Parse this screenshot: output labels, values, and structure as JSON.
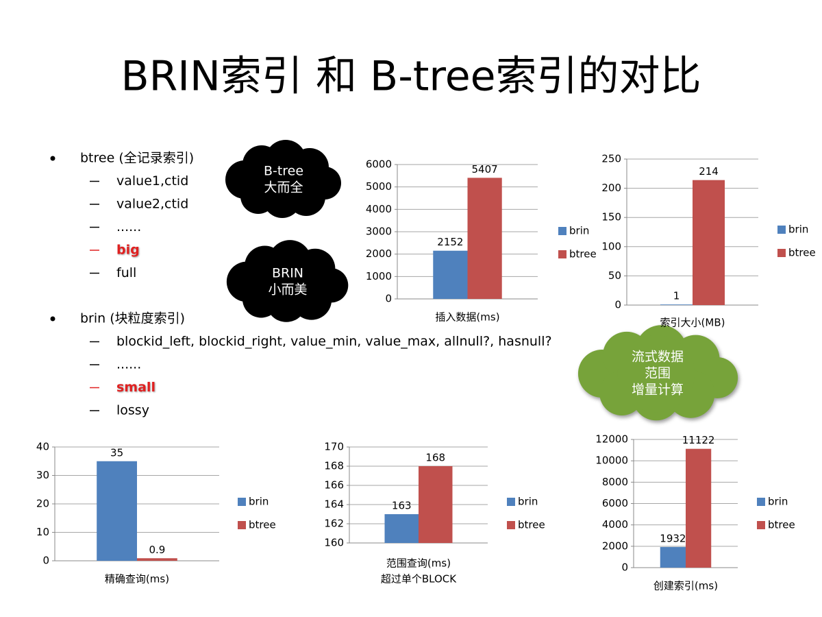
{
  "title": "BRIN索引 和 B-tree索引的对比",
  "bullets": [
    {
      "text": "btree (全记录索引)",
      "items": [
        {
          "text": "value1,ctid"
        },
        {
          "text": "value2,ctid"
        },
        {
          "text": "......"
        },
        {
          "text": "big",
          "emphasis": true
        },
        {
          "text": "full"
        }
      ]
    },
    {
      "text": "brin (块粒度索引)",
      "items": [
        {
          "text": "blockid_left, blockid_right, value_min, value_max, allnull?, hasnull?"
        },
        {
          "text": "......"
        },
        {
          "text": "small",
          "emphasis": true
        },
        {
          "text": "lossy"
        }
      ]
    }
  ],
  "callouts": [
    {
      "lines": [
        "B-tree",
        "大而全"
      ],
      "color": "#000000"
    },
    {
      "lines": [
        "BRIN",
        "小而美"
      ],
      "color": "#000000"
    },
    {
      "lines": [
        "流式数据",
        "范围",
        "增量计算"
      ],
      "color": "#77a33a"
    }
  ],
  "chart_data": [
    {
      "type": "bar",
      "categories": [
        "插入数据(ms)"
      ],
      "series": [
        {
          "name": "brin",
          "color": "#4f81bd",
          "values": [
            2152
          ]
        },
        {
          "name": "btree",
          "color": "#c0504d",
          "values": [
            5407
          ]
        }
      ],
      "ylim": [
        0,
        6000
      ],
      "yticks": [
        0,
        1000,
        2000,
        3000,
        4000,
        5000,
        6000
      ],
      "grid": true
    },
    {
      "type": "bar",
      "categories": [
        "索引大小(MB)"
      ],
      "series": [
        {
          "name": "brin",
          "color": "#4f81bd",
          "values": [
            1
          ]
        },
        {
          "name": "btree",
          "color": "#c0504d",
          "values": [
            214
          ]
        }
      ],
      "ylim": [
        0,
        250
      ],
      "yticks": [
        0,
        50,
        100,
        150,
        200,
        250
      ],
      "grid": true
    },
    {
      "type": "bar",
      "categories": [
        "精确查询(ms)"
      ],
      "series": [
        {
          "name": "brin",
          "color": "#4f81bd",
          "values": [
            35
          ]
        },
        {
          "name": "btree",
          "color": "#c0504d",
          "values": [
            0.9
          ]
        }
      ],
      "ylim": [
        0,
        40
      ],
      "yticks": [
        0,
        10,
        20,
        30,
        40
      ],
      "grid": true
    },
    {
      "type": "bar",
      "categories": [
        "范围查询(ms)"
      ],
      "x_label": "超过单个BLOCK",
      "series": [
        {
          "name": "brin",
          "color": "#4f81bd",
          "values": [
            163
          ]
        },
        {
          "name": "btree",
          "color": "#c0504d",
          "values": [
            168
          ]
        }
      ],
      "ylim": [
        160,
        170
      ],
      "yticks": [
        160,
        162,
        164,
        166,
        168,
        170
      ],
      "grid": true
    },
    {
      "type": "bar",
      "categories": [
        "创建索引(ms)"
      ],
      "series": [
        {
          "name": "brin",
          "color": "#4f81bd",
          "values": [
            1932
          ]
        },
        {
          "name": "btree",
          "color": "#c0504d",
          "values": [
            11122
          ]
        }
      ],
      "ylim": [
        0,
        12000
      ],
      "yticks": [
        0,
        2000,
        4000,
        6000,
        8000,
        10000,
        12000
      ],
      "grid": true
    }
  ]
}
